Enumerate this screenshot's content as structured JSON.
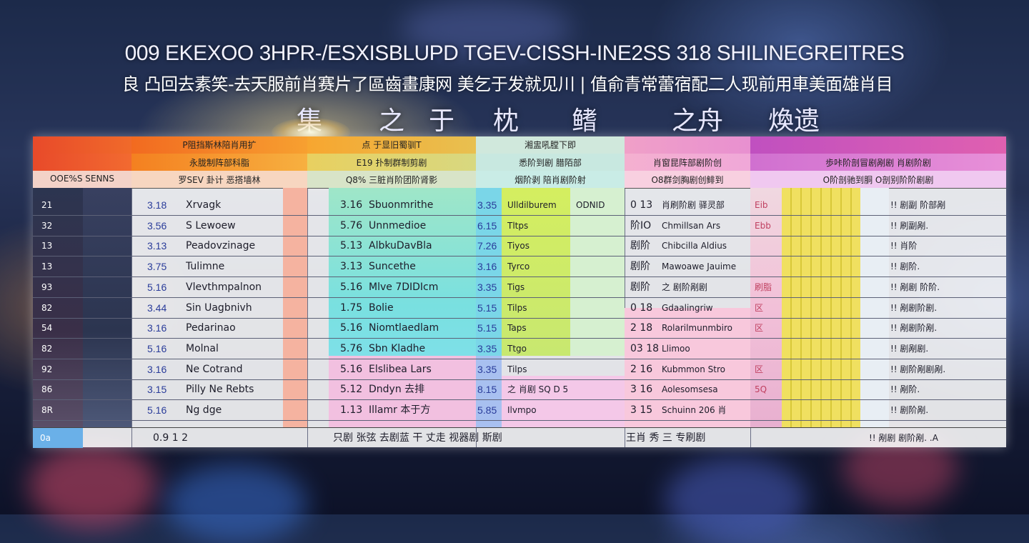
{
  "title_line1": "009 EKEXOO 3HPR-/ESXISBLUPD TGEV-CISSH-INE2SS 318 SHILINEGREITRES",
  "title_line2": "良 凸回去素笑-去天服前肖赛片了區齒畫康网 美乞于发就见川 | 值俞青常蕾宿配二人现前用車美面雄肖目",
  "title_line3": [
    "集",
    "之",
    "于",
    "枕",
    "鳍",
    "之舟",
    "煥遗"
  ],
  "columns": [
    {
      "header_top": "",
      "header_sub": "",
      "header_label": "OOE%S SENNS"
    },
    {
      "header_top": "P阻挡斯林陪肖用扩",
      "header_sub": "永胧制阵部科脂",
      "header_label": "罗SEV 卦计 恶搭墙林"
    },
    {
      "header_top": "点 于显旧蜀驯T",
      "header_sub": "E19 扑制群制剪剧",
      "header_label": "Q8% 三脏肖阶团阶肾影"
    },
    {
      "header_top": "湘盅吼膛下即",
      "header_sub": "悉阶到剧 腊陌部",
      "header_label": "烟阶剥 陪肖剧阶射"
    },
    {
      "header_top": "",
      "header_sub": "肖窗昆阵部剧阶创",
      "header_label": "O8群剑胸剧创鲱到"
    },
    {
      "header_top": "",
      "header_sub": "歩咔阶剖冒剧剐剧 肖剧阶剧",
      "header_label": "O阶剖驰到胴 O剖别阶阶剧剧"
    }
  ],
  "rows": [
    {
      "a": "21",
      "b": "3.18",
      "c": "Xrvagk",
      "d": "3.16",
      "e": "Sbuonmrithe",
      "f": "3.35",
      "g": "Ulldilburem",
      "h": "ODNID",
      "i": "0 13",
      "j": "肖刷阶剧 驿灵部",
      "k": "Eib",
      "l": "!! 剧副 阶部剐"
    },
    {
      "a": "32",
      "b": "3.56",
      "c": "S Lewoew",
      "d": "5.76",
      "e": "Unnmedioe",
      "f": "6.15",
      "g": "Tltps",
      "h": "",
      "i": "阶IO",
      "j": "Chmillsan Ars",
      "k": "Ebb",
      "l": "!! 刷副剐."
    },
    {
      "a": "13",
      "b": "3.13",
      "c": "Peadovzinage",
      "d": "5.13",
      "e": "AlbkuDavBla",
      "f": "7.26",
      "g": "Tiyos",
      "h": "",
      "i": "剧阶",
      "j": "Chibcilla Aldius",
      "k": "",
      "l": "!! 肖阶"
    },
    {
      "a": "13",
      "b": "3.75",
      "c": "Tulimne",
      "d": "3.13",
      "e": "Suncethe",
      "f": "3.16",
      "g": "Tyrco",
      "h": "",
      "i": "剧阶",
      "j": "Mawoawe Jauime",
      "k": "",
      "l": "!! 剧阶."
    },
    {
      "a": "93",
      "b": "5.16",
      "c": "Vlevthmpalnon",
      "d": "5.16",
      "e": "Mlve 7DIDIcm",
      "f": "3.35",
      "g": "Tigs",
      "h": "",
      "i": "剧阶",
      "j": "之 剧阶剐剧",
      "k": "刷脂",
      "l": "!! 剐剧 阶阶."
    },
    {
      "a": "82",
      "b": "3.44",
      "c": "Sin Uagbnivh",
      "d": "1.75",
      "e": "Bolie",
      "f": "5.15",
      "g": "Tilps",
      "h": "",
      "i": "0 18",
      "j": "Gdaalingriw",
      "k": "区",
      "l": "!! 剐剧阶剧."
    },
    {
      "a": "54",
      "b": "3.16",
      "c": "Pedarinao",
      "d": "5.16",
      "e": "Niomtlaedlam",
      "f": "5.15",
      "g": "Taps",
      "h": "",
      "i": "2 18",
      "j": "Rolarilmunmbiro",
      "k": "区",
      "l": "!! 剐剧阶剐."
    },
    {
      "a": "82",
      "b": "5.16",
      "c": "Molnal",
      "d": "5.76",
      "e": "Sbn Kladhe",
      "f": "3.35",
      "g": "Ttgo",
      "h": "",
      "i": "03 18",
      "j": "Llimoo",
      "k": "",
      "l": "!! 剧剐剧."
    },
    {
      "a": "92",
      "b": "3.16",
      "c": "Ne Cotrand",
      "d": "5.16",
      "e": "Elslibea Lars",
      "f": "3.35",
      "g": "Tilps",
      "h": "",
      "i": "2 16",
      "j": "Kubmmon Stro",
      "k": "区",
      "l": "!! 剧阶剐剧剐."
    },
    {
      "a": "86",
      "b": "3.15",
      "c": "Pilly Ne Rebts",
      "d": "5.12",
      "e": "Dndyn 去排",
      "f": "8.15",
      "g": "之 肖剧 SQ D 5",
      "h": "",
      "i": "3 16",
      "j": "Aolesomsesa",
      "k": "5Q",
      "l": "!! 剐阶."
    },
    {
      "a": "8R",
      "b": "5.16",
      "c": "Ng dge",
      "d": "1.13",
      "e": "Illamr 本于方",
      "f": "5.85",
      "g": "Ilvmpo",
      "h": "",
      "i": "3 15",
      "j": "Schuinn 206 肖",
      "k": "",
      "l": "!! 剧阶剐."
    }
  ],
  "footer": {
    "a": "0a",
    "b": "0.9 1  2",
    "c": "只剧 张弦 去剧蓝 干 丈走 视器剧 斯剧",
    "d": "王肖 秀 三 专刷剧",
    "e": "!! 剐剧 剧阶剐. .A"
  }
}
